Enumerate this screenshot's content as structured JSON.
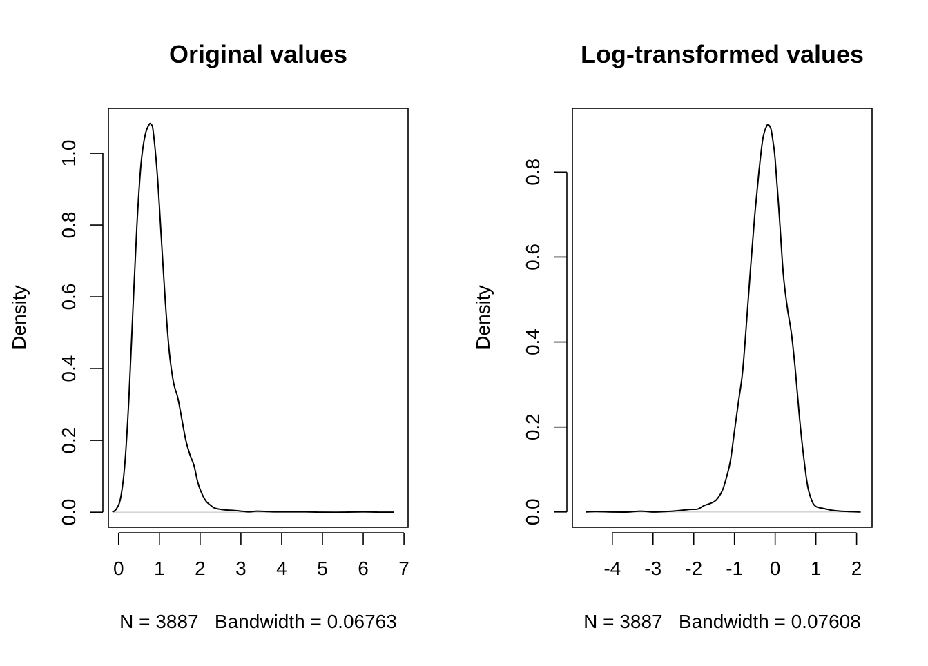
{
  "chart_data": [
    {
      "type": "line",
      "title": "Original values",
      "xlabel": "N = 3887   Bandwidth = 0.06763",
      "ylabel": "Density",
      "xlim": [
        -0.25,
        7.1
      ],
      "ylim": [
        -0.042,
        1.125
      ],
      "xticks": [
        0,
        1,
        2,
        3,
        4,
        5,
        6,
        7
      ],
      "yticks": [
        0.0,
        0.2,
        0.4,
        0.6,
        0.8,
        1.0
      ],
      "xtick_labels": [
        "0",
        "1",
        "2",
        "3",
        "4",
        "5",
        "6",
        "7"
      ],
      "ytick_labels": [
        "0.0",
        "0.2",
        "0.4",
        "0.6",
        "0.8",
        "1.0"
      ],
      "baseline": 0,
      "series": [
        {
          "x": [
            -0.15,
            -0.05,
            0.05,
            0.15,
            0.25,
            0.35,
            0.45,
            0.55,
            0.65,
            0.75,
            0.8,
            0.85,
            0.95,
            1.05,
            1.15,
            1.25,
            1.35,
            1.45,
            1.55,
            1.65,
            1.75,
            1.85,
            1.95,
            2.05,
            2.15,
            2.25,
            2.35,
            2.5,
            2.65,
            2.8,
            3.0,
            3.2,
            3.4,
            3.6,
            3.8,
            4.0,
            4.3,
            4.6,
            5.0,
            5.5,
            6.0,
            6.5,
            6.75
          ],
          "values": [
            0.0,
            0.01,
            0.04,
            0.13,
            0.31,
            0.56,
            0.8,
            0.97,
            1.05,
            1.08,
            1.08,
            1.06,
            0.94,
            0.76,
            0.58,
            0.44,
            0.36,
            0.32,
            0.26,
            0.2,
            0.16,
            0.13,
            0.08,
            0.05,
            0.03,
            0.02,
            0.012,
            0.008,
            0.006,
            0.005,
            0.003,
            0.001,
            0.003,
            0.002,
            0.001,
            0.001,
            0.001,
            0.001,
            0.0,
            0.0,
            0.001,
            0.0,
            0.0
          ]
        }
      ]
    },
    {
      "type": "line",
      "title": "Log-transformed values",
      "xlabel": "N = 3887   Bandwidth = 0.07608",
      "ylabel": "Density",
      "xlim": [
        -4.98,
        2.38
      ],
      "ylim": [
        -0.036,
        0.95
      ],
      "xticks": [
        -4,
        -3,
        -2,
        -1,
        0,
        1,
        2
      ],
      "yticks": [
        0.0,
        0.2,
        0.4,
        0.6,
        0.8
      ],
      "xtick_labels": [
        "-4",
        "-3",
        "-2",
        "-1",
        "0",
        "1",
        "2"
      ],
      "ytick_labels": [
        "0.0",
        "0.2",
        "0.4",
        "0.6",
        "0.8"
      ],
      "baseline": 0,
      "series": [
        {
          "x": [
            -4.65,
            -4.4,
            -4.0,
            -3.6,
            -3.3,
            -3.0,
            -2.7,
            -2.4,
            -2.1,
            -1.9,
            -1.75,
            -1.6,
            -1.45,
            -1.3,
            -1.2,
            -1.1,
            -1.0,
            -0.9,
            -0.8,
            -0.7,
            -0.6,
            -0.5,
            -0.4,
            -0.3,
            -0.2,
            -0.15,
            -0.1,
            -0.05,
            0.0,
            0.1,
            0.2,
            0.3,
            0.4,
            0.5,
            0.6,
            0.7,
            0.8,
            0.9,
            1.0,
            1.2,
            1.4,
            1.6,
            1.8,
            2.1
          ],
          "values": [
            0.0,
            0.001,
            0.0,
            0.0,
            0.002,
            0.0,
            0.001,
            0.003,
            0.006,
            0.007,
            0.015,
            0.02,
            0.028,
            0.05,
            0.08,
            0.12,
            0.19,
            0.26,
            0.33,
            0.45,
            0.58,
            0.7,
            0.8,
            0.88,
            0.91,
            0.91,
            0.9,
            0.87,
            0.83,
            0.7,
            0.56,
            0.48,
            0.42,
            0.33,
            0.22,
            0.13,
            0.06,
            0.027,
            0.013,
            0.008,
            0.004,
            0.002,
            0.001,
            0.0
          ]
        }
      ]
    }
  ]
}
